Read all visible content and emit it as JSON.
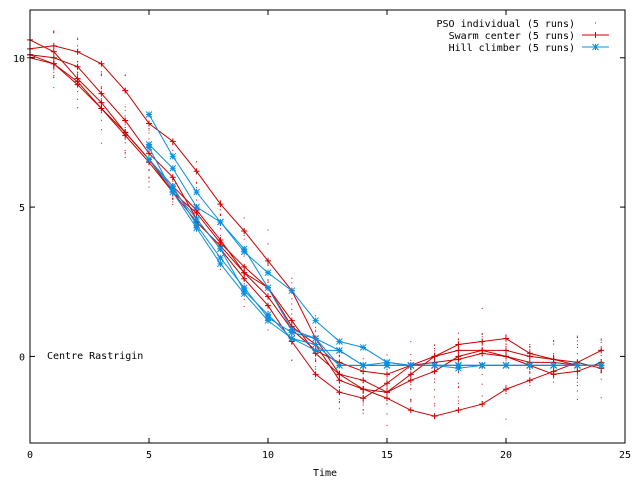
{
  "chart_data": {
    "type": "line",
    "title": "",
    "xlabel": "Time",
    "ylabel": "",
    "xlim": [
      0,
      25
    ],
    "ylim": [
      -2.9,
      11.6
    ],
    "xticks": [
      0,
      5,
      10,
      15,
      20,
      25
    ],
    "yticks": [
      0,
      5,
      10
    ],
    "grid": false,
    "legend": {
      "placement": "top-right"
    },
    "annotation": "Centre Rastrigin",
    "series": [
      {
        "name": "PSO individual (5 runs)",
        "color": "#cc0000",
        "style": "dots"
      },
      {
        "name": "Swarm center (5 runs)",
        "color": "#cc0000",
        "style": "line-plus"
      },
      {
        "name": "Hill climber (5 runs)",
        "color": "#0a8fe0",
        "style": "line-star"
      }
    ],
    "swarm_runs": [
      {
        "x": [
          0,
          1,
          2,
          3,
          4,
          5,
          6,
          7,
          8,
          9,
          10,
          11,
          12,
          13,
          14,
          15,
          16,
          17,
          18,
          19,
          20,
          21,
          22,
          23,
          24
        ],
        "y": [
          10.1,
          10.0,
          9.7,
          8.8,
          7.9,
          6.8,
          6.0,
          4.6,
          3.6,
          2.6,
          1.7,
          0.5,
          -0.6,
          -1.2,
          -1.4,
          -0.9,
          -0.3,
          0.0,
          0.2,
          0.2,
          0.0,
          -0.2,
          -0.2,
          -0.3,
          -0.3
        ]
      },
      {
        "x": [
          0,
          1,
          2,
          3,
          4,
          5,
          6,
          7,
          8,
          9,
          10,
          11,
          12,
          13,
          14,
          15,
          16,
          17,
          18,
          19,
          20,
          21,
          22,
          23,
          24
        ],
        "y": [
          10.3,
          10.4,
          10.2,
          9.8,
          8.9,
          7.8,
          7.2,
          6.2,
          5.1,
          4.2,
          3.2,
          2.2,
          0.6,
          -0.6,
          -1.1,
          -1.4,
          -1.8,
          -2.0,
          -1.8,
          -1.6,
          -1.1,
          -0.8,
          -0.5,
          -0.2,
          0.2
        ]
      },
      {
        "x": [
          0,
          1,
          2,
          3,
          4,
          5,
          6,
          7,
          8,
          9,
          10,
          11,
          12,
          13,
          14,
          15,
          16,
          17,
          18,
          19,
          20,
          21,
          22,
          23,
          24
        ],
        "y": [
          10.6,
          10.2,
          9.3,
          8.5,
          7.5,
          6.6,
          5.5,
          4.8,
          3.8,
          3.0,
          2.3,
          1.2,
          0.1,
          -0.6,
          -0.8,
          -1.2,
          -0.6,
          0.0,
          0.4,
          0.5,
          0.6,
          0.1,
          -0.1,
          -0.2,
          -0.4
        ]
      },
      {
        "x": [
          0,
          1,
          2,
          3,
          4,
          5,
          6,
          7,
          8,
          9,
          10,
          11,
          12,
          13,
          14,
          15,
          16,
          17,
          18,
          19,
          20,
          21,
          22,
          23,
          24
        ],
        "y": [
          10.0,
          9.8,
          9.1,
          8.3,
          7.5,
          6.6,
          5.7,
          4.9,
          3.9,
          2.8,
          2.0,
          0.9,
          0.2,
          -0.2,
          -0.5,
          -0.6,
          -0.3,
          -0.2,
          -0.1,
          0.1,
          0.0,
          -0.3,
          -0.6,
          -0.5,
          -0.2
        ]
      },
      {
        "x": [
          0,
          1,
          2,
          3,
          4,
          5,
          6,
          7,
          8,
          9,
          10,
          11,
          12,
          13,
          14,
          15,
          16,
          17,
          18,
          19,
          20,
          21,
          22,
          23,
          24
        ],
        "y": [
          10.1,
          9.8,
          9.2,
          8.3,
          7.4,
          6.5,
          5.5,
          4.5,
          3.7,
          2.8,
          2.3,
          1.0,
          0.4,
          -0.8,
          -1.1,
          -1.2,
          -0.8,
          -0.5,
          0.0,
          0.2,
          0.2,
          0.0,
          -0.1,
          -0.3,
          -0.3
        ]
      }
    ],
    "hill_runs": [
      {
        "x": [
          5,
          6,
          7,
          8,
          9,
          10,
          11,
          12,
          13,
          14,
          15,
          16,
          17,
          18,
          19,
          20,
          21,
          22,
          23,
          24
        ],
        "y": [
          8.1,
          6.7,
          5.5,
          4.5,
          3.5,
          2.8,
          2.2,
          1.2,
          0.5,
          0.3,
          -0.2,
          -0.3,
          -0.3,
          -0.3,
          -0.3,
          -0.3,
          -0.3,
          -0.3,
          -0.3,
          -0.3
        ]
      },
      {
        "x": [
          5,
          6,
          7,
          8,
          9,
          10,
          11,
          12,
          13,
          14,
          15,
          16,
          17,
          18,
          19,
          20,
          21,
          22,
          23,
          24
        ],
        "y": [
          7.1,
          6.3,
          5.0,
          4.5,
          3.6,
          2.3,
          0.9,
          0.6,
          0.2,
          -0.3,
          -0.3,
          -0.3,
          -0.3,
          -0.3,
          -0.3,
          -0.3,
          -0.3,
          -0.3,
          -0.3,
          -0.3
        ]
      },
      {
        "x": [
          5,
          6,
          7,
          8,
          9,
          10,
          11,
          12,
          13,
          14,
          15,
          16,
          17,
          18,
          19,
          20,
          21,
          22,
          23,
          24
        ],
        "y": [
          6.6,
          5.6,
          4.6,
          3.6,
          2.2,
          1.4,
          0.6,
          0.4,
          -0.3,
          -0.3,
          -0.3,
          -0.3,
          -0.3,
          -0.4,
          -0.3,
          -0.3,
          -0.3,
          -0.3,
          -0.3,
          -0.3
        ]
      },
      {
        "x": [
          5,
          6,
          7,
          8,
          9,
          10,
          11,
          12,
          13,
          14,
          15,
          16,
          17,
          18,
          19,
          20,
          21,
          22,
          23,
          24
        ],
        "y": [
          6.6,
          5.7,
          4.4,
          3.3,
          2.3,
          1.3,
          0.8,
          0.6,
          -0.3,
          -0.3,
          -0.3,
          -0.3,
          -0.3,
          -0.3,
          -0.3,
          -0.3,
          -0.3,
          -0.3,
          -0.3,
          -0.3
        ]
      },
      {
        "x": [
          5,
          6,
          7,
          8,
          9,
          10,
          11,
          12,
          13,
          14,
          15,
          16,
          17,
          18,
          19,
          20,
          21,
          22,
          23,
          24
        ],
        "y": [
          7.0,
          5.5,
          4.3,
          3.1,
          2.1,
          1.2,
          0.6,
          0.2,
          0.2,
          -0.3,
          -0.2,
          -0.3,
          -0.3,
          -0.3,
          -0.3,
          -0.3,
          -0.3,
          -0.3,
          -0.3,
          -0.3
        ]
      }
    ]
  }
}
